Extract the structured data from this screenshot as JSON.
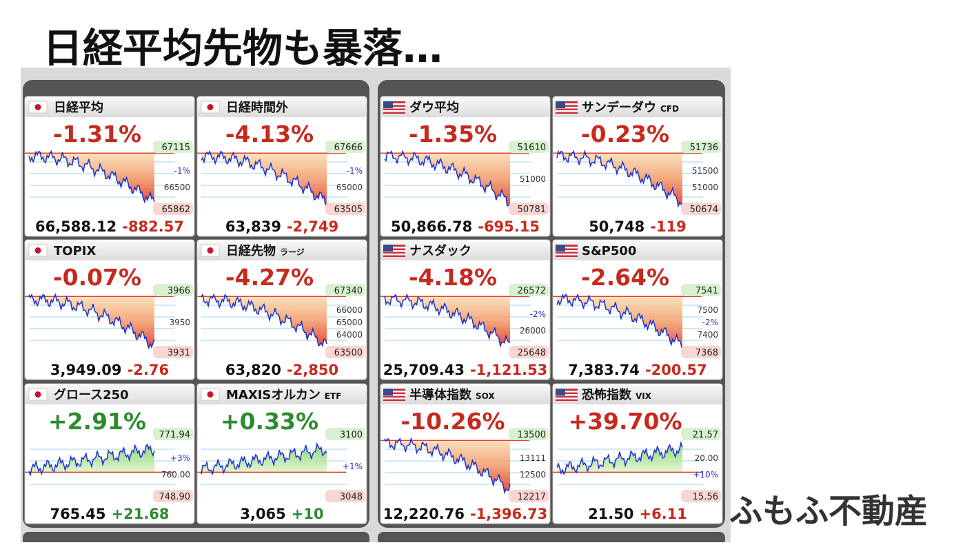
{
  "header": {
    "title": "日経平均先物も暴落…"
  },
  "watermark": "ふもふ不動産",
  "tiles": [
    {
      "flag": "jp",
      "name": "日経平均",
      "suffix": null,
      "pct": "-1.31%",
      "high": "67115",
      "mids": [
        "-1%",
        "66500"
      ],
      "low": "65862",
      "price": "66,588.12",
      "change": "-882.57",
      "color": "#c62a1e"
    },
    {
      "flag": "jp",
      "name": "日経時間外",
      "suffix": null,
      "pct": "-4.13%",
      "high": "67666",
      "mids": [
        "-1%",
        "65000"
      ],
      "low": "63505",
      "price": "63,839",
      "change": "-2,749",
      "color": "#c62a1e"
    },
    {
      "flag": "us",
      "name": "ダウ平均",
      "suffix": null,
      "pct": "-1.35%",
      "high": "51610",
      "mids": [
        "51000"
      ],
      "low": "50781",
      "price": "50,866.78",
      "change": "-695.15",
      "color": "#c62a1e"
    },
    {
      "flag": "us",
      "name": "サンデーダウ",
      "suffix": "CFD",
      "pct": "-0.23%",
      "high": "51736",
      "mids": [
        "51500",
        "51000"
      ],
      "low": "50674",
      "price": "50,748",
      "change": "-119",
      "color": "#c62a1e"
    },
    {
      "flag": "jp",
      "name": "TOPIX",
      "suffix": null,
      "pct": "-0.07%",
      "high": "3966",
      "mids": [
        "3950"
      ],
      "low": "3931",
      "price": "3,949.09",
      "change": "-2.76",
      "color": "#c62a1e"
    },
    {
      "flag": "jp",
      "name": "日経先物",
      "suffix": "ラージ",
      "pct": "-4.27%",
      "high": "67340",
      "mids": [
        "66000",
        "65000",
        "64000"
      ],
      "low": "63500",
      "price": "63,820",
      "change": "-2,850",
      "color": "#c62a1e"
    },
    {
      "flag": "us",
      "name": "ナスダック",
      "suffix": null,
      "pct": "-4.18%",
      "high": "26572",
      "mids": [
        "-2%",
        "26000"
      ],
      "low": "25648",
      "price": "25,709.43",
      "change": "-1,121.53",
      "color": "#c62a1e"
    },
    {
      "flag": "us",
      "name": "S&P500",
      "suffix": null,
      "pct": "-2.64%",
      "high": "7541",
      "mids": [
        "7500",
        "-2%",
        "7400"
      ],
      "low": "7368",
      "price": "7,383.74",
      "change": "-200.57",
      "color": "#c62a1e"
    },
    {
      "flag": "jp",
      "name": "グロース250",
      "suffix": null,
      "pct": "+2.91%",
      "high": "771.94",
      "mids": [
        "+3%",
        "760.00"
      ],
      "low": "748.90",
      "price": "765.45",
      "change": "+21.68",
      "color": "#2e8b2e"
    },
    {
      "flag": "jp",
      "name": "MAXISオルカン",
      "suffix": "ETF",
      "pct": "+0.33%",
      "high": "3100",
      "mids": [
        "+1%"
      ],
      "low": "3048",
      "price": "3,065",
      "change": "+10",
      "color": "#2e8b2e"
    },
    {
      "flag": "us",
      "name": "半導体指数",
      "suffix": "SOX",
      "pct": "-10.26%",
      "high": "13500",
      "mids": [
        "13111",
        "12500"
      ],
      "low": "12217",
      "price": "12,220.76",
      "change": "-1,396.73",
      "color": "#c62a1e"
    },
    {
      "flag": "us",
      "name": "恐怖指数",
      "suffix": "VIX",
      "pct": "+39.70%",
      "high": "21.57",
      "mids": [
        "20.00",
        "+10%"
      ],
      "low": "15.56",
      "price": "21.50",
      "change": "+6.11",
      "color": "#c62a1e"
    }
  ]
}
